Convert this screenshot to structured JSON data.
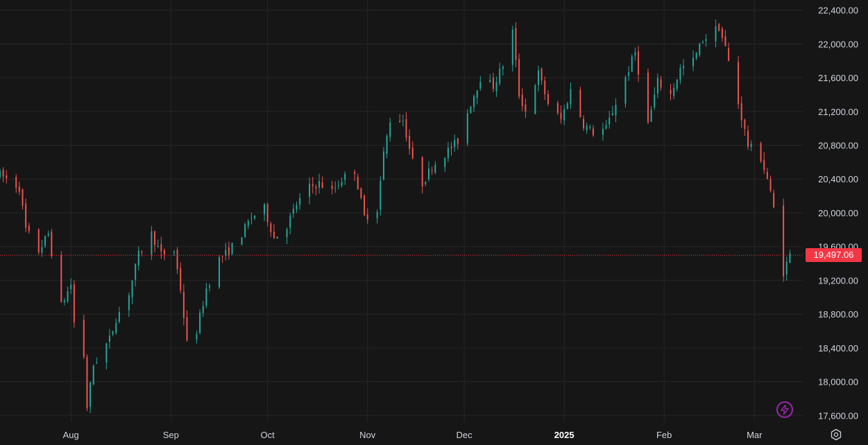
{
  "chart_data": {
    "type": "candlestick",
    "y_ticks": [
      17600,
      18000,
      18400,
      18800,
      19200,
      19600,
      20000,
      20400,
      20800,
      21200,
      21600,
      22000,
      22400
    ],
    "y_tick_labels": [
      "17,600.00",
      "18,000.00",
      "18,400.00",
      "18,800.00",
      "19,200.00",
      "19,600.00",
      "20,000.00",
      "20,400.00",
      "20,800.00",
      "21,200.00",
      "21,600.00",
      "22,000.00",
      "22,400.00"
    ],
    "ylim": [
      17520,
      22520
    ],
    "x_ticks": [
      {
        "label": "Aug",
        "date": "2024-08-01",
        "bold": false
      },
      {
        "label": "Sep",
        "date": "2024-09-01",
        "bold": false
      },
      {
        "label": "Oct",
        "date": "2024-10-01",
        "bold": false
      },
      {
        "label": "Nov",
        "date": "2024-11-01",
        "bold": false
      },
      {
        "label": "Dec",
        "date": "2024-12-01",
        "bold": false
      },
      {
        "label": "2025",
        "date": "2025-01-01",
        "bold": true
      },
      {
        "label": "Feb",
        "date": "2025-02-01",
        "bold": false
      },
      {
        "label": "Mar",
        "date": "2025-03-01",
        "bold": false
      }
    ],
    "xlim": [
      "2024-07-10",
      "2025-03-16"
    ],
    "grid": true,
    "last_price": 19497.06,
    "last_price_label": "19,497.06",
    "series": [
      {
        "values": [
          [
            "2024-07-10",
            20450
          ],
          [
            "2024-07-16",
            20300
          ],
          [
            "2024-07-18",
            19800
          ],
          [
            "2024-07-22",
            19550
          ],
          [
            "2024-07-25",
            19750
          ],
          [
            "2024-07-29",
            18900
          ],
          [
            "2024-08-01",
            19150
          ],
          [
            "2024-08-02",
            18700
          ],
          [
            "2024-08-05",
            18300
          ],
          [
            "2024-08-06",
            17700
          ],
          [
            "2024-08-08",
            18200
          ],
          [
            "2024-08-13",
            18500
          ],
          [
            "2024-08-15",
            18750
          ],
          [
            "2024-08-19",
            19050
          ],
          [
            "2024-08-22",
            19500
          ],
          [
            "2024-08-26",
            19750
          ],
          [
            "2024-08-29",
            19500
          ],
          [
            "2024-09-02",
            19550
          ],
          [
            "2024-09-04",
            19100
          ],
          [
            "2024-09-06",
            18450
          ],
          [
            "2024-09-09",
            18600
          ],
          [
            "2024-09-12",
            19100
          ],
          [
            "2024-09-16",
            19450
          ],
          [
            "2024-09-19",
            19550
          ],
          [
            "2024-09-23",
            19750
          ],
          [
            "2024-09-26",
            19950
          ],
          [
            "2024-09-30",
            20050
          ],
          [
            "2024-10-03",
            19700
          ],
          [
            "2024-10-07",
            19850
          ],
          [
            "2024-10-10",
            20100
          ],
          [
            "2024-10-14",
            20300
          ],
          [
            "2024-10-17",
            20350
          ],
          [
            "2024-10-21",
            20250
          ],
          [
            "2024-10-24",
            20400
          ],
          [
            "2024-10-28",
            20500
          ],
          [
            "2024-10-31",
            19950
          ],
          [
            "2024-11-04",
            20050
          ],
          [
            "2024-11-06",
            20700
          ],
          [
            "2024-11-08",
            21100
          ],
          [
            "2024-11-12",
            21100
          ],
          [
            "2024-11-15",
            20600
          ],
          [
            "2024-11-18",
            20350
          ],
          [
            "2024-11-21",
            20550
          ],
          [
            "2024-11-25",
            20700
          ],
          [
            "2024-11-29",
            20850
          ],
          [
            "2024-12-03",
            21300
          ],
          [
            "2024-12-06",
            21600
          ],
          [
            "2024-12-10",
            21500
          ],
          [
            "2024-12-13",
            21750
          ],
          [
            "2024-12-16",
            22150
          ],
          [
            "2024-12-18",
            21400
          ],
          [
            "2024-12-20",
            21200
          ],
          [
            "2024-12-24",
            21650
          ],
          [
            "2024-12-27",
            21300
          ],
          [
            "2024-12-31",
            21100
          ],
          [
            "2025-01-03",
            21450
          ],
          [
            "2025-01-07",
            21050
          ],
          [
            "2025-01-10",
            20950
          ],
          [
            "2025-01-14",
            21000
          ],
          [
            "2025-01-17",
            21300
          ],
          [
            "2025-01-21",
            21700
          ],
          [
            "2025-01-23",
            21900
          ],
          [
            "2025-01-27",
            21050
          ],
          [
            "2025-01-30",
            21550
          ],
          [
            "2025-02-03",
            21400
          ],
          [
            "2025-02-06",
            21700
          ],
          [
            "2025-02-10",
            21800
          ],
          [
            "2025-02-13",
            22050
          ],
          [
            "2025-02-18",
            22200
          ],
          [
            "2025-02-20",
            21950
          ],
          [
            "2025-02-24",
            21300
          ],
          [
            "2025-02-27",
            20800
          ],
          [
            "2025-03-03",
            20650
          ],
          [
            "2025-03-05",
            20400
          ],
          [
            "2025-03-07",
            20050
          ],
          [
            "2025-03-10",
            19300
          ],
          [
            "2025-03-12",
            19500
          ]
        ]
      }
    ]
  },
  "colors": {
    "background": "#161616",
    "grid": "#262626",
    "up": "#26a69a",
    "down": "#ef5350",
    "axis_text": "#d1d4dc",
    "price_label_bg": "#f23645",
    "bolt": "#9c27b0"
  },
  "icons": {
    "bolt": "bolt-icon",
    "settings": "settings-icon"
  }
}
